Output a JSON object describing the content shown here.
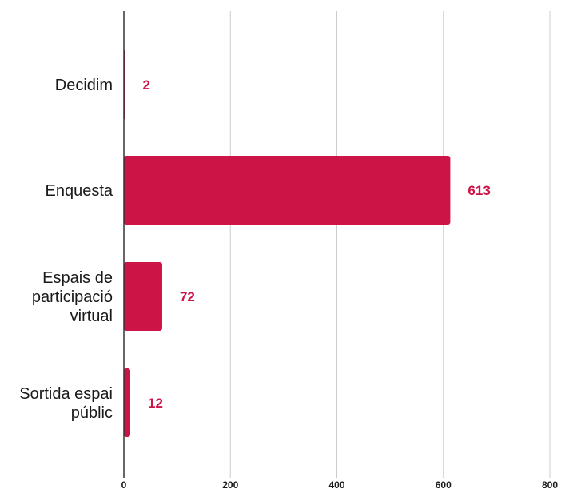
{
  "chart_data": {
    "type": "bar",
    "orientation": "horizontal",
    "categories": [
      [
        "Decidim"
      ],
      [
        "Enquesta"
      ],
      [
        "Espais de",
        "participació",
        "virtual"
      ],
      [
        "Sortida espai",
        "públic"
      ]
    ],
    "values": [
      2,
      613,
      72,
      12
    ],
    "value_labels": [
      "2",
      "613",
      "72",
      "12"
    ],
    "xlim": [
      0,
      800
    ],
    "xticks": [
      "0",
      "200",
      "400",
      "600",
      "800"
    ],
    "grid": true,
    "legend": "none",
    "colors": {
      "bar": "#cc1447",
      "value_label": "#cc1447",
      "grid": "#cccccc",
      "axis": "#333333"
    }
  }
}
